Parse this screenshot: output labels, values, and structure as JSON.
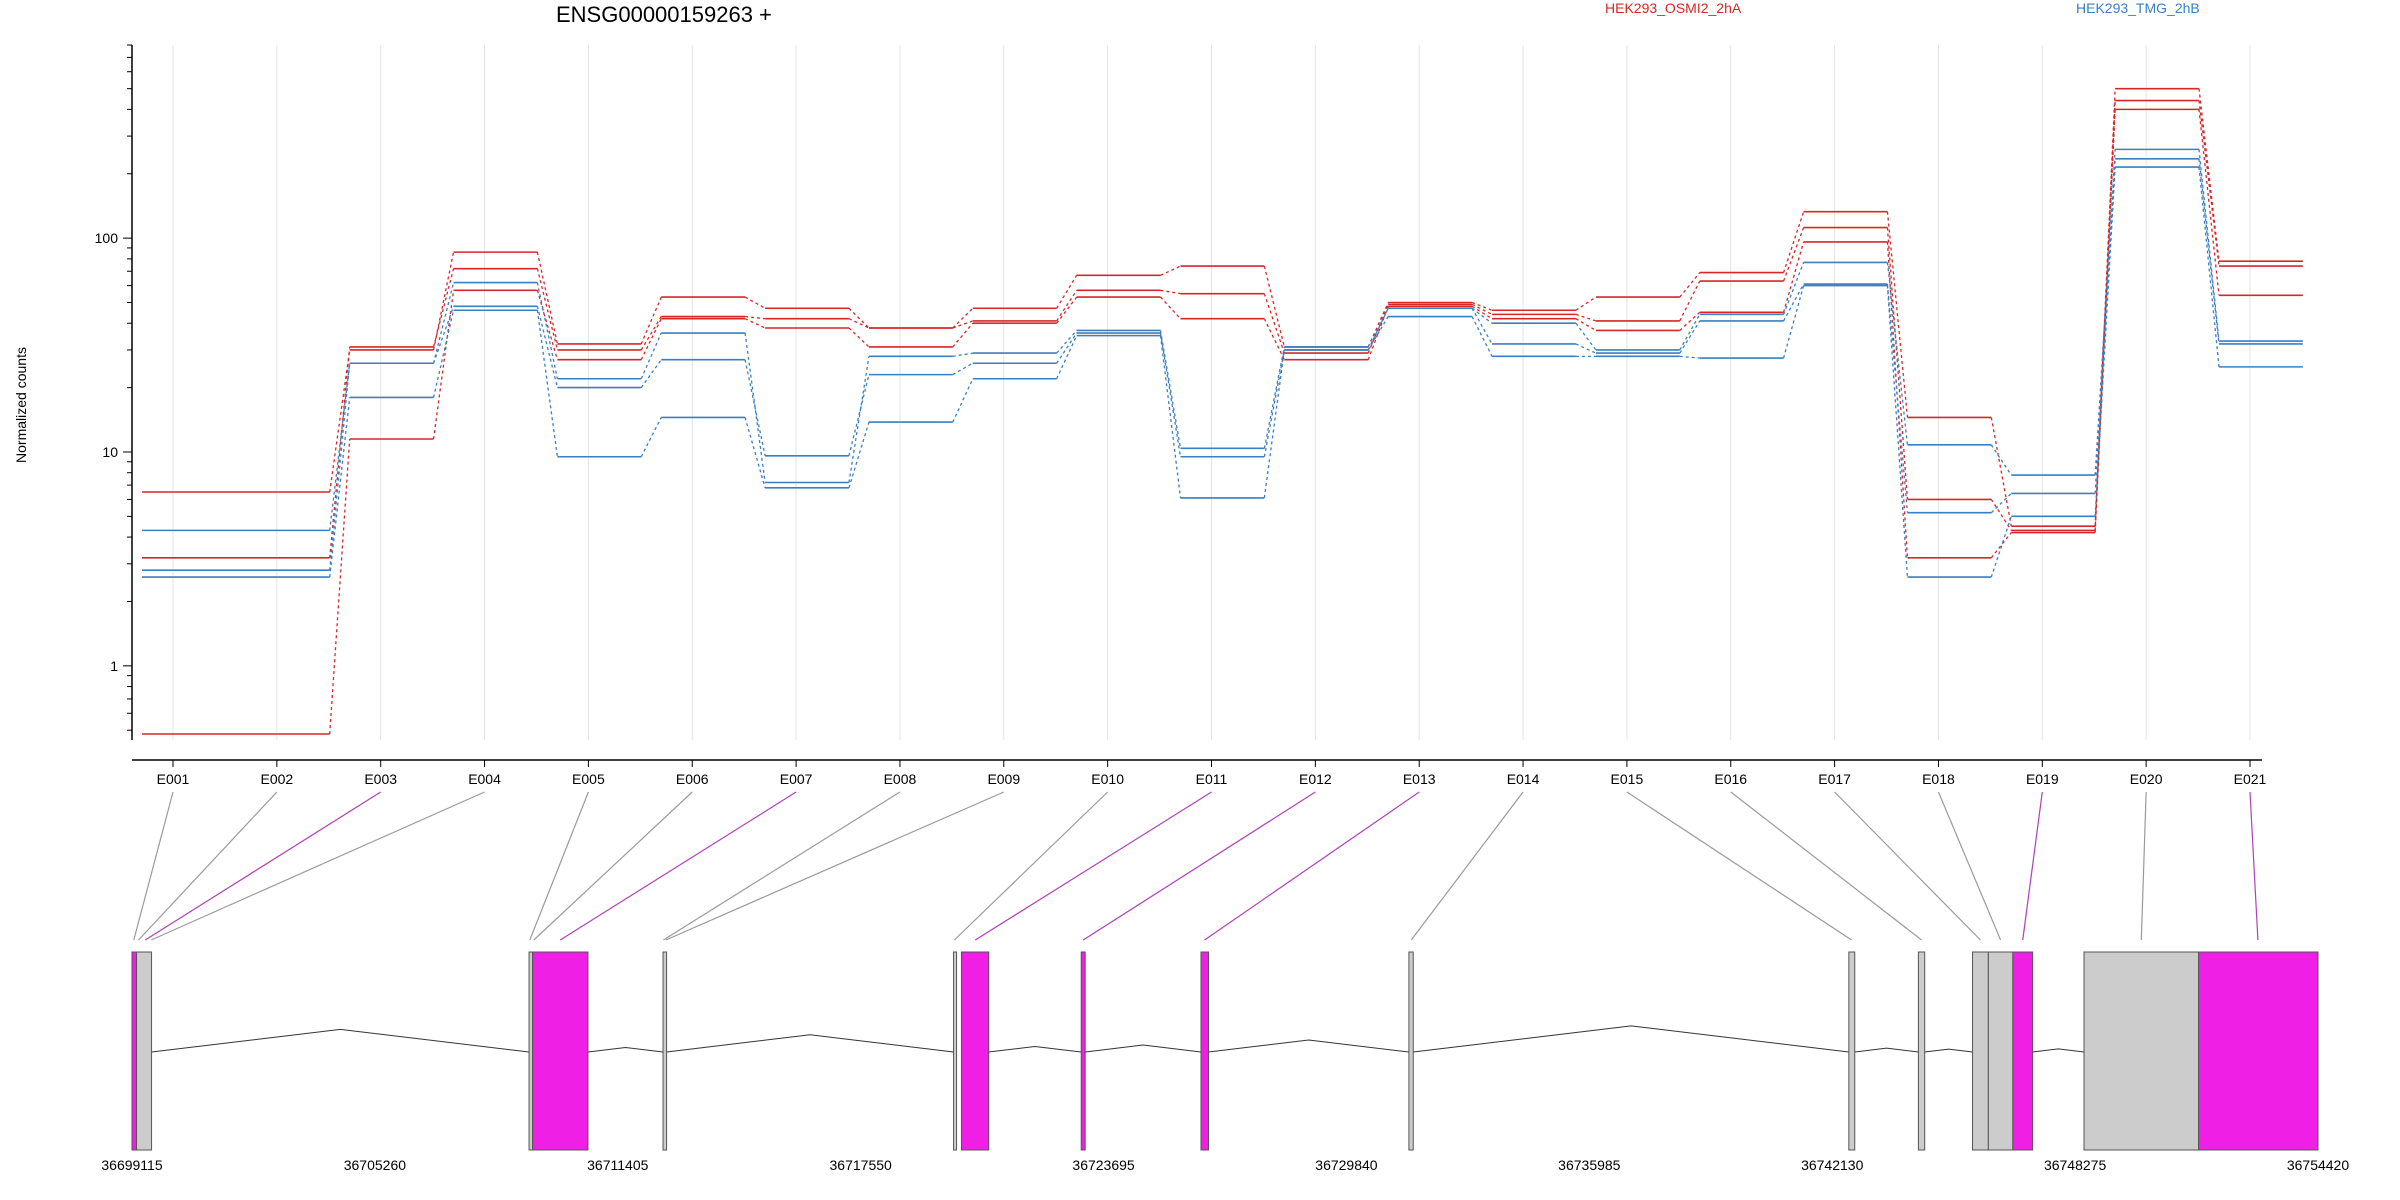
{
  "title": "ENSG00000159263 +",
  "ylabel": "Normalized counts",
  "legend": [
    {
      "name": "HEK293_OSMI2_2hA",
      "color": "#d62728"
    },
    {
      "name": "HEK293_TMG_2hB",
      "color": "#3a7fc1"
    }
  ],
  "colors": {
    "osmi": "#d62728",
    "tmg": "#3a7fc1",
    "exon_sig": "#ef1fe6",
    "exon": "#cccccc",
    "connector_sig": "#b040b8",
    "connector": "#9a9a9a"
  },
  "chart_data": {
    "type": "line",
    "yscale": "log",
    "ylim": [
      0.45,
      800
    ],
    "yticks": [
      1,
      10,
      100
    ],
    "ytick_labels": [
      "1",
      "10",
      "100"
    ],
    "categories": [
      "E001",
      "E002",
      "E003",
      "E004",
      "E005",
      "E006",
      "E007",
      "E008",
      "E009",
      "E010",
      "E011",
      "E012",
      "E013",
      "E014",
      "E015",
      "E016",
      "E017",
      "E018",
      "E019",
      "E020",
      "E021"
    ],
    "bins": [
      [
        0,
        2
      ],
      [
        2,
        3
      ],
      [
        3,
        4
      ],
      [
        4,
        5
      ],
      [
        5,
        6
      ],
      [
        6,
        7
      ],
      [
        7,
        8
      ],
      [
        8,
        9
      ],
      [
        9,
        10
      ],
      [
        10,
        11
      ],
      [
        11,
        12
      ],
      [
        12,
        13
      ],
      [
        13,
        14
      ],
      [
        14,
        15
      ],
      [
        15,
        16
      ],
      [
        16,
        17
      ],
      [
        17,
        18
      ],
      [
        18,
        19
      ],
      [
        19,
        20
      ],
      [
        20,
        21
      ]
    ],
    "series": [
      {
        "group": "HEK293_OSMI2_2hA",
        "values": [
          6.5,
          30,
          86,
          32,
          53,
          47,
          38,
          47,
          67,
          74,
          31,
          50,
          46,
          53,
          69,
          133,
          14.5,
          4.5,
          500,
          78
        ]
      },
      {
        "group": "HEK293_OSMI2_2hA",
        "values": [
          3.2,
          31,
          72,
          30,
          43,
          42,
          38,
          41,
          57,
          55,
          29,
          49,
          44,
          41,
          63,
          112,
          6.0,
          4.3,
          440,
          74
        ]
      },
      {
        "group": "HEK293_OSMI2_2hA",
        "values": [
          0.48,
          11.5,
          57,
          27,
          42,
          38,
          31,
          40,
          53,
          42,
          27,
          48,
          42,
          37,
          45,
          96,
          3.2,
          4.2,
          400,
          54
        ]
      },
      {
        "group": "HEK293_TMG_2hB",
        "values": [
          4.3,
          26,
          62,
          22,
          36,
          7.2,
          28,
          29,
          37,
          10.4,
          31,
          47,
          40,
          30,
          44,
          77,
          10.8,
          7.8,
          260,
          33
        ]
      },
      {
        "group": "HEK293_TMG_2hB",
        "values": [
          2.8,
          26,
          48,
          20,
          27,
          9.6,
          23,
          26,
          36,
          9.5,
          30,
          47,
          32,
          29,
          41,
          61,
          5.2,
          6.4,
          235,
          32
        ]
      },
      {
        "group": "HEK293_TMG_2hB",
        "values": [
          2.6,
          18,
          46,
          9.5,
          14.5,
          6.8,
          13.8,
          22,
          35,
          6.1,
          30,
          43,
          28,
          28,
          27.5,
          60,
          2.6,
          5.0,
          215,
          25
        ]
      }
    ],
    "gene_coordinates": {
      "start": 36699115,
      "end": 36754420,
      "tick_labels": [
        "36699115",
        "36705260",
        "36711405",
        "36717550",
        "36723695",
        "36729840",
        "36735985",
        "36742130",
        "36748275",
        "36754420"
      ],
      "exons": [
        {
          "start": 36699115,
          "end": 36699230,
          "sig": true
        },
        {
          "start": 36699230,
          "end": 36699610,
          "sig": false
        },
        {
          "start": 36709160,
          "end": 36709250,
          "sig": false
        },
        {
          "start": 36709250,
          "end": 36710650,
          "sig": true
        },
        {
          "start": 36712550,
          "end": 36712640,
          "sig": false
        },
        {
          "start": 36719900,
          "end": 36719950,
          "sig": false
        },
        {
          "start": 36720100,
          "end": 36720790,
          "sig": true
        },
        {
          "start": 36723130,
          "end": 36723230,
          "sig": true
        },
        {
          "start": 36726160,
          "end": 36726350,
          "sig": true
        },
        {
          "start": 36731420,
          "end": 36731530,
          "sig": false
        },
        {
          "start": 36742550,
          "end": 36742700,
          "sig": false
        },
        {
          "start": 36744310,
          "end": 36744470,
          "sig": false
        },
        {
          "start": 36745680,
          "end": 36746080,
          "sig": false
        },
        {
          "start": 36746080,
          "end": 36746700,
          "sig": false
        },
        {
          "start": 36746700,
          "end": 36747200,
          "sig": true
        },
        {
          "start": 36748500,
          "end": 36751400,
          "sig": false
        },
        {
          "start": 36751400,
          "end": 36754420,
          "sig": true
        }
      ],
      "introns": [
        [
          36699610,
          36709160
        ],
        [
          36710650,
          36712550
        ],
        [
          36712640,
          36719900
        ],
        [
          36720790,
          36723130
        ],
        [
          36723230,
          36726160
        ],
        [
          36726350,
          36731420
        ],
        [
          36731530,
          36742550
        ],
        [
          36742700,
          36744310
        ],
        [
          36744470,
          36745680
        ],
        [
          36747200,
          36748500
        ]
      ],
      "bin_links": [
        {
          "label": "E001",
          "pos": 36699160,
          "sig": false
        },
        {
          "label": "E002",
          "pos": 36699280,
          "sig": false
        },
        {
          "label": "E003",
          "pos": 36699450,
          "sig": true
        },
        {
          "label": "E004",
          "pos": 36699600,
          "sig": false
        },
        {
          "label": "E005",
          "pos": 36709180,
          "sig": false
        },
        {
          "label": "E006",
          "pos": 36709280,
          "sig": false
        },
        {
          "label": "E007",
          "pos": 36709950,
          "sig": true
        },
        {
          "label": "E008",
          "pos": 36712560,
          "sig": false
        },
        {
          "label": "E009",
          "pos": 36712620,
          "sig": false
        },
        {
          "label": "E010",
          "pos": 36719920,
          "sig": false
        },
        {
          "label": "E011",
          "pos": 36720450,
          "sig": true
        },
        {
          "label": "E012",
          "pos": 36723180,
          "sig": true
        },
        {
          "label": "E013",
          "pos": 36726250,
          "sig": true
        },
        {
          "label": "E014",
          "pos": 36731480,
          "sig": false
        },
        {
          "label": "E015",
          "pos": 36742620,
          "sig": false
        },
        {
          "label": "E016",
          "pos": 36744390,
          "sig": false
        },
        {
          "label": "E017",
          "pos": 36745880,
          "sig": false
        },
        {
          "label": "E018",
          "pos": 36746390,
          "sig": false
        },
        {
          "label": "E019",
          "pos": 36746950,
          "sig": true
        },
        {
          "label": "E020",
          "pos": 36749950,
          "sig": false
        },
        {
          "label": "E021",
          "pos": 36752900,
          "sig": true
        }
      ]
    }
  }
}
